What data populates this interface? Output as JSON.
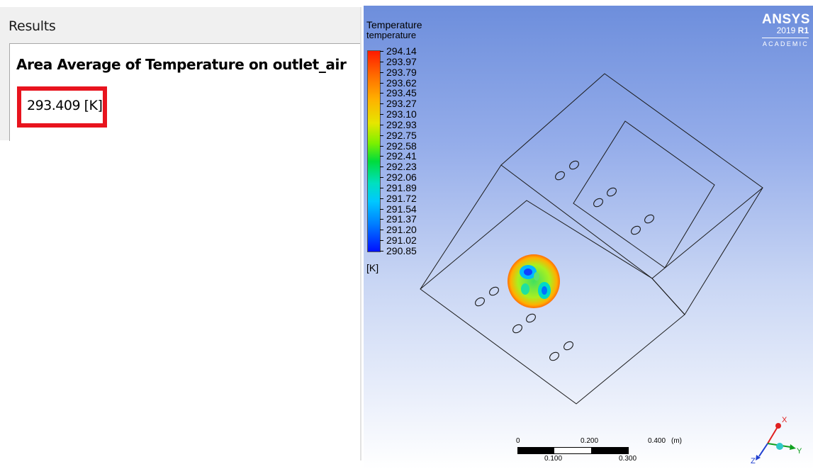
{
  "results": {
    "header": "Results",
    "title": "Area Average of Temperature on outlet_air",
    "value": "293.409 [K]",
    "highlight_color": "#e8141e"
  },
  "legend": {
    "title": "Temperature",
    "variable": "temperature",
    "unit": "[K]",
    "ticks": [
      "294.14",
      "293.97",
      "293.79",
      "293.62",
      "293.45",
      "293.27",
      "293.10",
      "292.93",
      "292.75",
      "292.58",
      "292.41",
      "292.23",
      "292.06",
      "291.89",
      "291.72",
      "291.54",
      "291.37",
      "291.20",
      "291.02",
      "290.85"
    ]
  },
  "logo": {
    "name": "ANSYS",
    "version_year": "2019",
    "version_release": "R1",
    "edition": "ACADEMIC"
  },
  "scale": {
    "top_labels": [
      "0",
      "0.200",
      "0.400"
    ],
    "unit": "(m)",
    "bottom_labels": [
      "0.100",
      "0.300"
    ]
  },
  "axes": {
    "x": "X",
    "y": "Y",
    "z": "Z",
    "x_color": "#e02020",
    "y_color": "#10a020",
    "z_color": "#2040d0"
  }
}
